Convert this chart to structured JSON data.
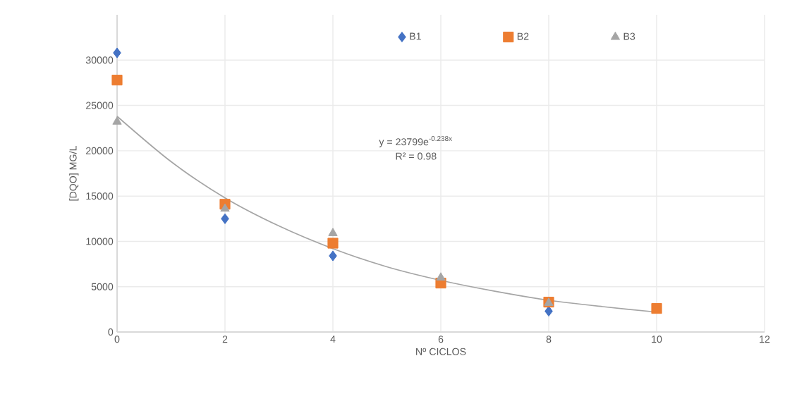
{
  "chart_data": {
    "type": "scatter",
    "xlabel": "Nº CICLOS",
    "ylabel": "[DQO] MG/L",
    "xlim": [
      0,
      12
    ],
    "xticks": [
      0,
      2,
      4,
      6,
      8,
      10,
      12
    ],
    "ylim": [
      0,
      35000
    ],
    "yticks": [
      0,
      5000,
      10000,
      15000,
      20000,
      25000,
      30000
    ],
    "grid": true,
    "legend": "top",
    "annotations": [
      "y = 23799e$^{-0.238x}$",
      "R² = 0.98"
    ],
    "series": [
      {
        "name": "B1",
        "color": "#4472c4",
        "marker": "diamond",
        "x": [
          0,
          2,
          4,
          8
        ],
        "values": [
          30800,
          12500,
          8400,
          2300
        ]
      },
      {
        "name": "B2",
        "color": "#ed7d31",
        "marker": "square",
        "x": [
          0,
          2,
          4,
          6,
          8,
          10
        ],
        "values": [
          27800,
          14100,
          9800,
          5400,
          3300,
          2600
        ]
      },
      {
        "name": "B3",
        "color": "#a5a5a5",
        "marker": "triangle",
        "x": [
          0,
          2,
          4,
          6,
          8
        ],
        "values": [
          23200,
          13600,
          10900,
          6000,
          3200
        ]
      },
      {
        "type": "line",
        "color": "#a5a5a5",
        "marker": "none",
        "x": [
          0,
          1,
          2,
          3,
          4,
          5,
          6,
          7,
          8,
          9,
          10
        ],
        "values": [
          23800,
          18800,
          14800,
          11700,
          9200,
          7200,
          5700,
          4500,
          3500,
          2800,
          2200
        ]
      }
    ]
  }
}
